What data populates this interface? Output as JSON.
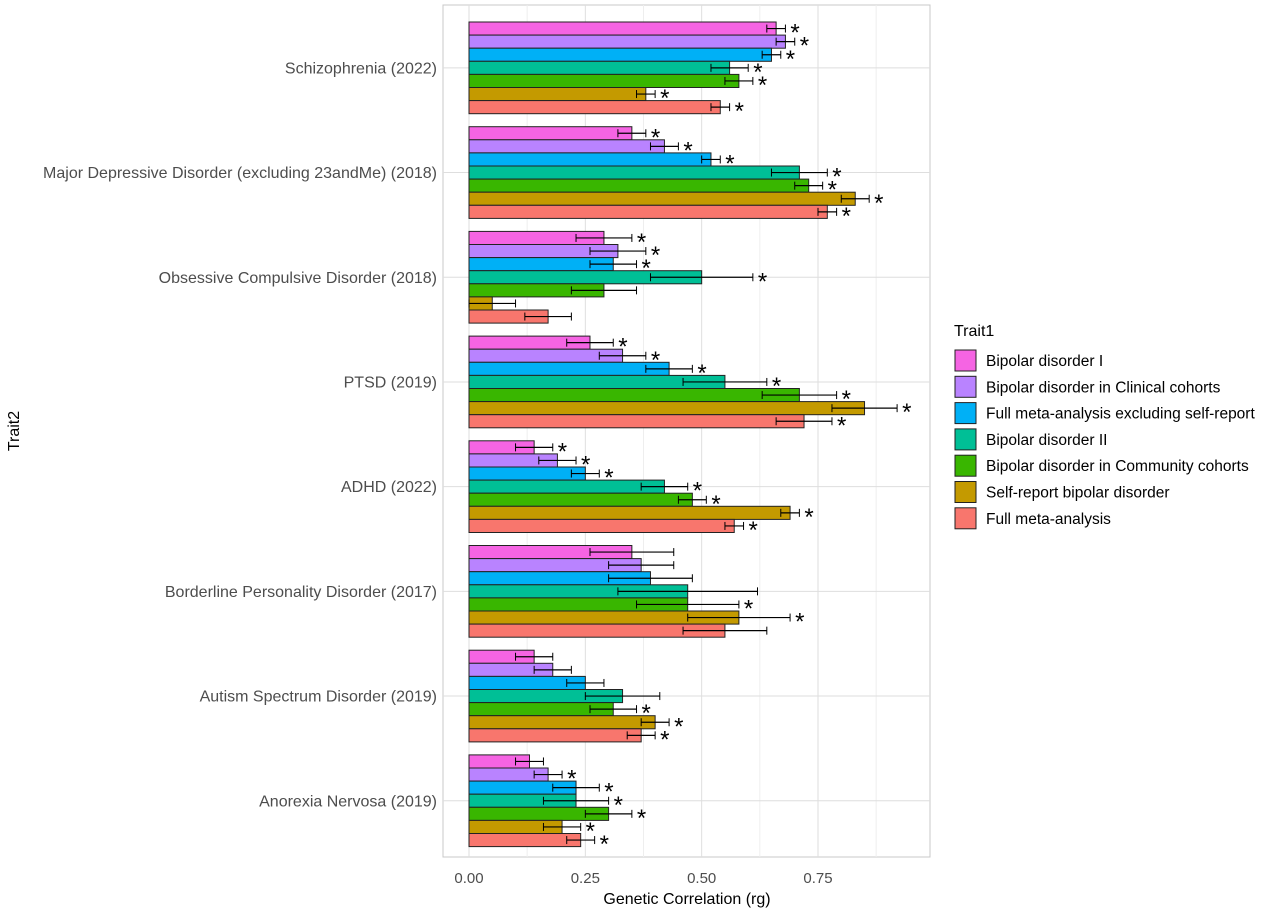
{
  "chart_data": {
    "type": "bar",
    "orientation": "horizontal",
    "xlabel": "Genetic Correlation (rg)",
    "ylabel": "Trait2",
    "xlim": [
      -0.04,
      0.98
    ],
    "x_ticks": [
      0.0,
      0.25,
      0.5,
      0.75
    ],
    "x_tick_labels": [
      "0.00",
      "0.25",
      "0.50",
      "0.75"
    ],
    "grid": true,
    "legend_position": "right",
    "legend_title": "Trait1",
    "categories": [
      "Schizophrenia (2022)",
      "Major Depressive Disorder (excluding 23andMe) (2018)",
      "Obsessive Compulsive Disorder (2018)",
      "PTSD (2019)",
      "ADHD (2022)",
      "Borderline Personality Disorder (2017)",
      "Autism Spectrum Disorder (2019)",
      "Anorexia Nervosa (2019)"
    ],
    "series": [
      {
        "name": "Bipolar disorder I",
        "color": "#f564e3",
        "values": [
          0.66,
          0.35,
          0.29,
          0.26,
          0.14,
          0.35,
          0.14,
          0.13
        ],
        "errors": [
          0.02,
          0.03,
          0.06,
          0.05,
          0.04,
          0.09,
          0.04,
          0.03
        ],
        "significant": [
          true,
          true,
          true,
          true,
          true,
          false,
          false,
          false
        ]
      },
      {
        "name": "Bipolar disorder in Clinical cohorts",
        "color": "#b983ff",
        "values": [
          0.68,
          0.42,
          0.32,
          0.33,
          0.19,
          0.37,
          0.18,
          0.17
        ],
        "errors": [
          0.02,
          0.03,
          0.06,
          0.05,
          0.04,
          0.07,
          0.04,
          0.03
        ],
        "significant": [
          true,
          true,
          true,
          true,
          true,
          false,
          false,
          true
        ]
      },
      {
        "name": "Full meta-analysis excluding self-report",
        "color": "#00b0f6",
        "values": [
          0.65,
          0.52,
          0.31,
          0.43,
          0.25,
          0.39,
          0.25,
          0.23
        ],
        "errors": [
          0.02,
          0.02,
          0.05,
          0.05,
          0.03,
          0.09,
          0.04,
          0.05
        ],
        "significant": [
          true,
          true,
          true,
          true,
          true,
          false,
          false,
          true
        ]
      },
      {
        "name": "Bipolar disorder II",
        "color": "#00bf96",
        "values": [
          0.56,
          0.71,
          0.5,
          0.55,
          0.42,
          0.47,
          0.33,
          0.23
        ],
        "errors": [
          0.04,
          0.06,
          0.11,
          0.09,
          0.05,
          0.15,
          0.08,
          0.07
        ],
        "significant": [
          true,
          true,
          true,
          true,
          true,
          false,
          false,
          true
        ]
      },
      {
        "name": "Bipolar disorder in Community cohorts",
        "color": "#39b600",
        "values": [
          0.58,
          0.73,
          0.29,
          0.71,
          0.48,
          0.47,
          0.31,
          0.3
        ],
        "errors": [
          0.03,
          0.03,
          0.07,
          0.08,
          0.03,
          0.11,
          0.05,
          0.05
        ],
        "significant": [
          true,
          true,
          false,
          true,
          true,
          true,
          true,
          true
        ]
      },
      {
        "name": "Self-report bipolar disorder",
        "color": "#c49a00",
        "values": [
          0.38,
          0.83,
          0.05,
          0.85,
          0.69,
          0.58,
          0.4,
          0.2
        ],
        "errors": [
          0.02,
          0.03,
          0.05,
          0.07,
          0.02,
          0.11,
          0.03,
          0.04
        ],
        "significant": [
          true,
          true,
          false,
          true,
          true,
          true,
          true,
          true
        ]
      },
      {
        "name": "Full meta-analysis",
        "color": "#f8766d",
        "values": [
          0.54,
          0.77,
          0.17,
          0.72,
          0.57,
          0.55,
          0.37,
          0.24
        ],
        "errors": [
          0.02,
          0.02,
          0.05,
          0.06,
          0.02,
          0.09,
          0.03,
          0.03
        ],
        "significant": [
          true,
          true,
          false,
          true,
          true,
          false,
          true,
          true
        ]
      }
    ],
    "significance_marker": "*"
  }
}
